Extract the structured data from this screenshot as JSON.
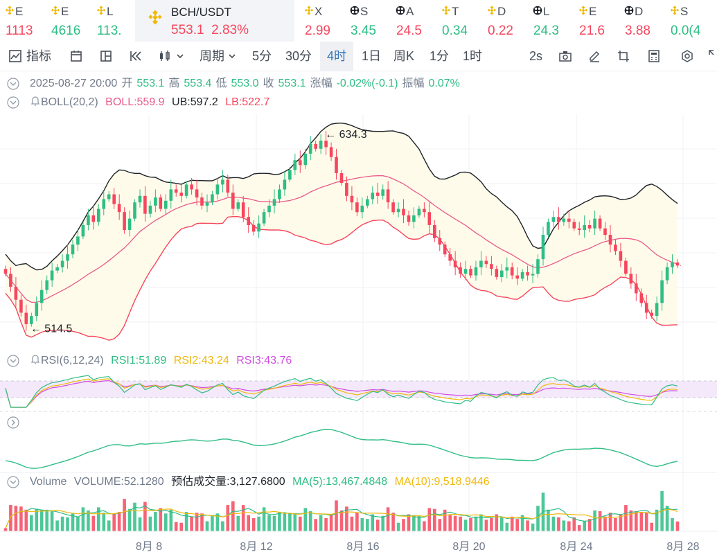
{
  "tickers": [
    {
      "name": "E",
      "price": "1113",
      "dir": "down",
      "icon": "binance-icon"
    },
    {
      "name": "E",
      "price": "4616",
      "dir": "up",
      "icon": "binance-icon"
    },
    {
      "name": "L",
      "price": "113.",
      "dir": "up",
      "icon": "binance-icon"
    },
    {
      "name": "BCH/USDT",
      "price": "553.1",
      "change": "2.83%",
      "dir": "down",
      "icon": "binance-icon",
      "active": true
    },
    {
      "name": "X",
      "price": "2.99",
      "dir": "down",
      "icon": "binance-icon"
    },
    {
      "name": "S",
      "price": "3.45",
      "dir": "up",
      "icon": "ball-icon"
    },
    {
      "name": "A",
      "price": "24.5",
      "dir": "down",
      "icon": "ball-icon"
    },
    {
      "name": "T",
      "price": "0.34",
      "dir": "up",
      "icon": "binance-icon"
    },
    {
      "name": "D",
      "price": "0.22",
      "dir": "down",
      "icon": "binance-icon"
    },
    {
      "name": "L",
      "price": "24.3",
      "dir": "up",
      "icon": "ball-icon"
    },
    {
      "name": "E",
      "price": "21.6",
      "dir": "down",
      "icon": "binance-icon"
    },
    {
      "name": "D",
      "price": "3.88",
      "dir": "down",
      "icon": "ball-icon"
    },
    {
      "name": "S",
      "price": "0.0(4",
      "dir": "up",
      "icon": "binance-icon"
    }
  ],
  "toolbar": {
    "indicator": "指标",
    "period": "周期",
    "intervals": [
      "5分",
      "30分",
      "4时",
      "1日",
      "周K",
      "1分",
      "1时"
    ],
    "selected_interval": "4时",
    "refresh": "2s",
    "icons": [
      "indicator-icon",
      "calendar-icon",
      "layout-icon",
      "rewind-icon",
      "candle-type-icon",
      "chevron-down-icon",
      "camera-icon",
      "pen-icon",
      "crop-icon",
      "calculator-icon",
      "settings-icon",
      "expand-icon"
    ]
  },
  "ohlc": {
    "date": "2025-08-27 20:00",
    "open_label": "开",
    "open": "553.1",
    "high_label": "高",
    "high": "553.4",
    "low_label": "低",
    "low": "553.0",
    "close_label": "收",
    "close": "553.1",
    "change_label": "涨幅",
    "change": "-0.02%(-0.1)",
    "amplitude_label": "振幅",
    "amplitude": "0.07%"
  },
  "boll": {
    "label": "BOLL(20,2)",
    "mid": "BOLL:559.9",
    "ub": "UB:597.2",
    "lb": "LB:522.7"
  },
  "rsi": {
    "label": "RSI(6,12,24)",
    "rsi1": "RSI1:51.89",
    "rsi2": "RSI2:43.24",
    "rsi3": "RSI3:43.76"
  },
  "volume": {
    "label": "Volume",
    "value": "VOLUME:52.1280",
    "estimate": "预估成交量:3,127.6800",
    "ma5": "MA(5):13,467.4848",
    "ma10": "MA(10):9,518.9446"
  },
  "colors": {
    "up": "#2ebd85",
    "down": "#f6465d",
    "upper": "#1e2329",
    "lower": "#f6465d",
    "mid": "#e85a8a",
    "band": "#fffbea",
    "rsi1": "#2ebd85",
    "rsi2": "#f0b90b",
    "rsi3": "#d04de0",
    "ma5": "#2ebd85",
    "ma10": "#f0b90b",
    "brand": "#f0b90b",
    "selected": "#3375bb"
  },
  "chart_data": {
    "type": "candlestick",
    "symbol": "BCH/USDT",
    "interval": "4时",
    "x_ticks": [
      "8月 8",
      "8月 12",
      "8月 16",
      "8月 20",
      "8月 24",
      "8月 28"
    ],
    "price_range": [
      505,
      645
    ],
    "markers": [
      {
        "label": "← 634.3",
        "value": 634.3
      },
      {
        "label": "← 514.5",
        "value": 514.5
      }
    ],
    "last_price": 553.1,
    "close_series": [
      548,
      540,
      532,
      524,
      517,
      522,
      530,
      538,
      544,
      550,
      552,
      556,
      560,
      566,
      571,
      578,
      584,
      580,
      588,
      594,
      597,
      591,
      586,
      575,
      582,
      592,
      596,
      585,
      590,
      595,
      588,
      593,
      600,
      598,
      596,
      603,
      600,
      595,
      590,
      592,
      597,
      603,
      606,
      598,
      588,
      592,
      583,
      578,
      574,
      579,
      586,
      590,
      594,
      600,
      606,
      612,
      618,
      615,
      622,
      628,
      625,
      630,
      626,
      620,
      610,
      604,
      596,
      592,
      586,
      590,
      594,
      598,
      596,
      600,
      592,
      586,
      588,
      584,
      580,
      584,
      588,
      586,
      578,
      570,
      566,
      560,
      556,
      552,
      548,
      551,
      547,
      552,
      556,
      554,
      551,
      546,
      550,
      552,
      547,
      545,
      549,
      547,
      548,
      557,
      572,
      580,
      583,
      580,
      582,
      580,
      576,
      575,
      578,
      576,
      582,
      576,
      572,
      566,
      562,
      556,
      548,
      542,
      536,
      530,
      524,
      522,
      530,
      544,
      552,
      555,
      553.1
    ]
  }
}
